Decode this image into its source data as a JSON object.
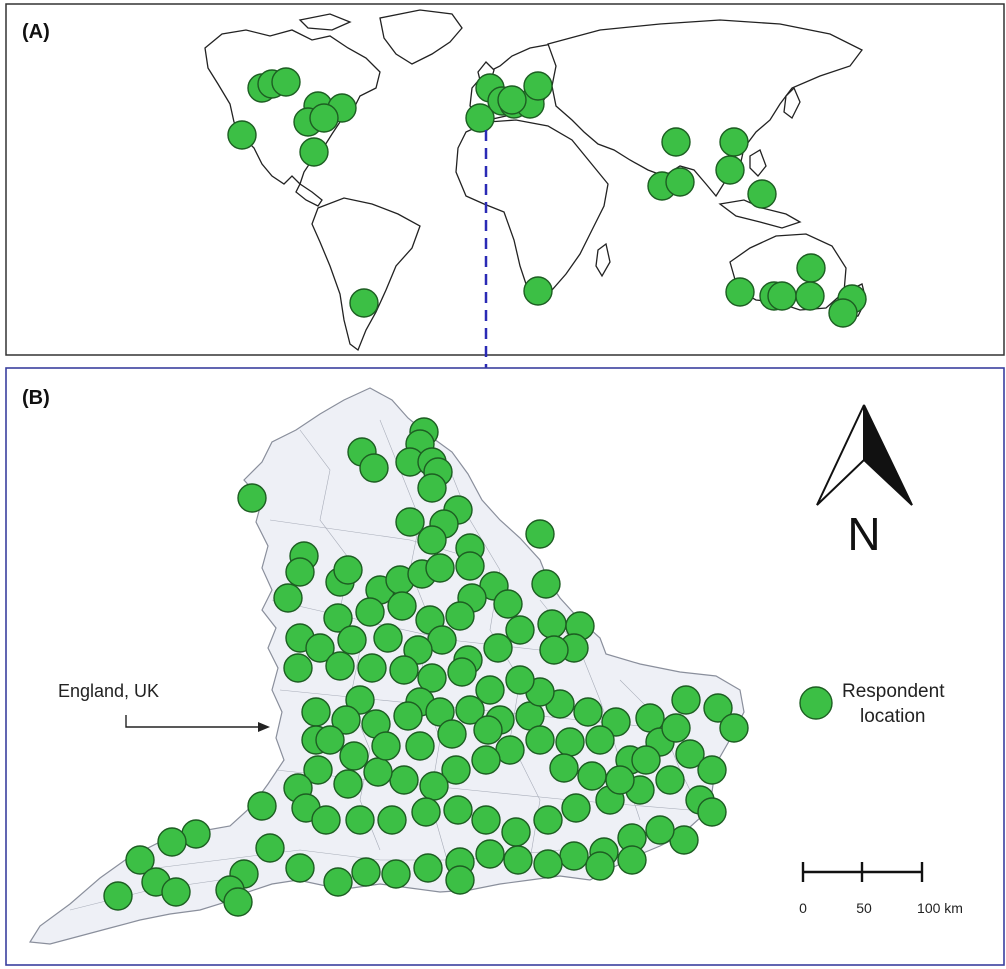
{
  "panels": {
    "a": {
      "label": "(A)"
    },
    "b": {
      "label": "(B)"
    }
  },
  "annotation": {
    "text": "England, UK"
  },
  "legend": {
    "line1": "Respondent",
    "line2": "location"
  },
  "compass": {
    "letter": "N"
  },
  "scale": {
    "ticks": [
      "0",
      "50",
      "100 km"
    ]
  },
  "colors": {
    "respondent_fill": "#3cbf45",
    "respondent_stroke": "#1d5e22",
    "panel_b_border": "#3a3f9e",
    "connector_dash": "#2a2ab5"
  }
}
